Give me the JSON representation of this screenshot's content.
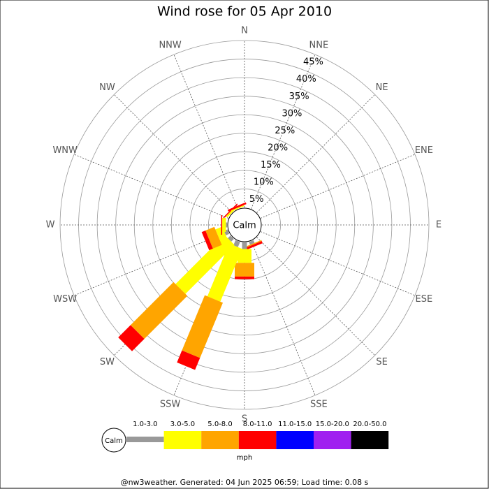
{
  "chart_data": {
    "type": "windrose",
    "title": "Wind rose for 05 Apr 2010",
    "center_label": "Calm",
    "categories": [
      "N",
      "NNE",
      "NE",
      "ENE",
      "E",
      "ESE",
      "SE",
      "SSE",
      "S",
      "SSW",
      "SW",
      "WSW",
      "W",
      "WNW",
      "NW",
      "NNW"
    ],
    "series": [
      {
        "name": "1.0-3.0",
        "color": "#999999",
        "values": [
          0,
          0,
          0,
          0,
          0,
          0,
          0,
          0.8,
          1.8,
          1.5,
          1,
          1,
          0.3,
          0,
          0,
          0
        ]
      },
      {
        "name": "3.0-5.0",
        "color": "#ffff00",
        "values": [
          0,
          0,
          0,
          0,
          0,
          0,
          0,
          0,
          3.7,
          15.4,
          18.7,
          2,
          1,
          0,
          0.5,
          0.3
        ]
      },
      {
        "name": "5.0-8.0",
        "color": "#ffa500",
        "values": [
          0,
          0,
          0,
          0,
          0,
          0,
          0,
          0.3,
          3.7,
          16.1,
          16.4,
          2.6,
          0,
          0,
          0,
          0
        ]
      },
      {
        "name": "8.0-11.0",
        "color": "#ff0000",
        "values": [
          0,
          0,
          0,
          0,
          0,
          0,
          0,
          0.6,
          0.7,
          3.5,
          4.7,
          1.1,
          0.3,
          0,
          0.3,
          0.5
        ]
      },
      {
        "name": "11.0-15.0",
        "color": "#0000ff",
        "values": [
          0,
          0,
          0,
          0,
          0,
          0,
          0,
          0,
          0,
          0,
          0,
          0,
          0,
          0,
          0,
          0
        ]
      },
      {
        "name": "15.0-20.0",
        "color": "#a020f0",
        "values": [
          0,
          0,
          0,
          0,
          0,
          0,
          0,
          0,
          0,
          0,
          0,
          0,
          0,
          0,
          0,
          0
        ]
      },
      {
        "name": "20.0-50.0",
        "color": "#000000",
        "values": [
          0,
          0,
          0,
          0,
          0,
          0,
          0,
          0,
          0,
          0,
          0,
          0,
          0,
          0,
          0,
          0
        ]
      }
    ],
    "ylim": [
      0,
      45
    ],
    "yticks": [
      {
        "value": 5,
        "label": "5%"
      },
      {
        "value": 10,
        "label": "10%"
      },
      {
        "value": 15,
        "label": "15%"
      },
      {
        "value": 20,
        "label": "20%"
      },
      {
        "value": 25,
        "label": "25%"
      },
      {
        "value": 30,
        "label": "30%"
      },
      {
        "value": 35,
        "label": "35%"
      },
      {
        "value": 40,
        "label": "40%"
      },
      {
        "value": 45,
        "label": "45%"
      }
    ],
    "legend_unit": "mph",
    "footer": "@nw3weather. Generated: 04 Jun 2025 06:59; Load time: 0.08 s"
  }
}
